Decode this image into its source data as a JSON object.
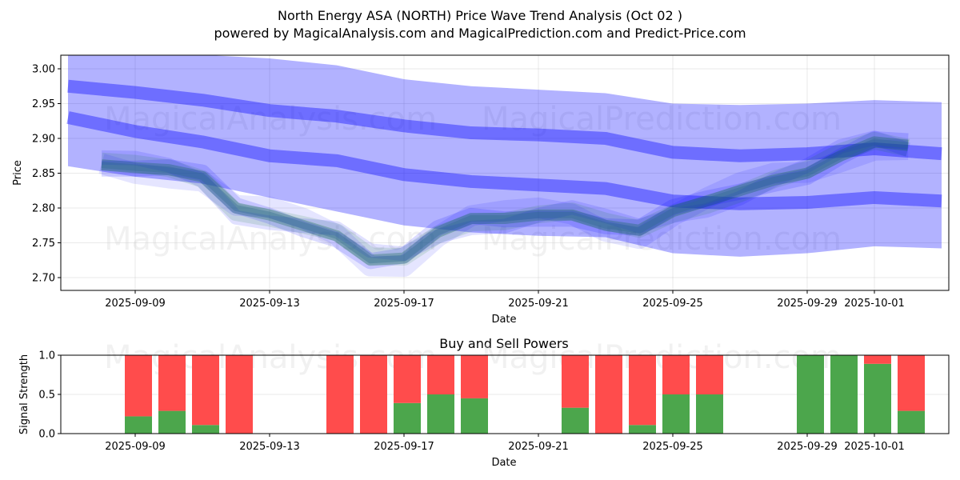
{
  "title": "North Energy ASA (NORTH) Price Wave Trend Analysis (Oct 02 )",
  "subtitle": "powered by MagicalAnalysis.com and MagicalPrediction.com and Predict-Price.com",
  "watermarks": [
    "MagicalAnalysis.com",
    "MagicalPrediction.com"
  ],
  "chart_data": [
    {
      "type": "area",
      "name": "price-wave-trend",
      "xlabel": "Date",
      "ylabel": "Price",
      "ylim": [
        2.68,
        3.02
      ],
      "xlim": [
        "2025-09-06",
        "2025-10-03"
      ],
      "grid": true,
      "yticks": [
        "2.70",
        "2.75",
        "2.80",
        "2.85",
        "2.90",
        "2.95",
        "3.00"
      ],
      "ytick_values": [
        2.7,
        2.75,
        2.8,
        2.85,
        2.9,
        2.95,
        3.0
      ],
      "xticks": [
        "2025-09-09",
        "2025-09-13",
        "2025-09-17",
        "2025-09-21",
        "2025-09-25",
        "2025-09-29",
        "2025-10-01"
      ],
      "colors": {
        "bands": "#0000ff",
        "price": "#008000"
      },
      "x": [
        "2025-09-07",
        "2025-09-09",
        "2025-09-11",
        "2025-09-13",
        "2025-09-15",
        "2025-09-17",
        "2025-09-19",
        "2025-09-21",
        "2025-09-23",
        "2025-09-25",
        "2025-09-27",
        "2025-09-29",
        "2025-10-01",
        "2025-10-03"
      ],
      "series": [
        {
          "name": "outer-band-upper",
          "values": [
            3.03,
            3.03,
            3.02,
            3.015,
            3.005,
            2.985,
            2.975,
            2.97,
            2.965,
            2.95,
            2.948,
            2.95,
            2.955,
            2.952
          ]
        },
        {
          "name": "outer-band-lower",
          "values": [
            2.86,
            2.845,
            2.835,
            2.815,
            2.795,
            2.775,
            2.765,
            2.76,
            2.758,
            2.735,
            2.73,
            2.735,
            2.745,
            2.742
          ]
        },
        {
          "name": "upper-trend-line",
          "values": [
            2.975,
            2.966,
            2.955,
            2.94,
            2.932,
            2.918,
            2.908,
            2.905,
            2.9,
            2.88,
            2.875,
            2.878,
            2.885,
            2.878
          ]
        },
        {
          "name": "middle-trend-line",
          "values": [
            2.93,
            2.91,
            2.895,
            2.875,
            2.868,
            2.848,
            2.838,
            2.833,
            2.828,
            2.81,
            2.806,
            2.808,
            2.815,
            2.81
          ]
        }
      ],
      "price": {
        "x": [
          "2025-09-08",
          "2025-09-09",
          "2025-09-10",
          "2025-09-11",
          "2025-09-12",
          "2025-09-13",
          "2025-09-14",
          "2025-09-15",
          "2025-09-16",
          "2025-09-17",
          "2025-09-18",
          "2025-09-19",
          "2025-09-20",
          "2025-09-21",
          "2025-09-22",
          "2025-09-23",
          "2025-09-24",
          "2025-09-25",
          "2025-09-26",
          "2025-09-27",
          "2025-09-28",
          "2025-09-29",
          "2025-09-30",
          "2025-10-01",
          "2025-10-02"
        ],
        "values": [
          2.862,
          2.858,
          2.855,
          2.845,
          2.8,
          2.79,
          2.775,
          2.76,
          2.725,
          2.728,
          2.765,
          2.785,
          2.785,
          2.79,
          2.79,
          2.775,
          2.768,
          2.795,
          2.81,
          2.825,
          2.84,
          2.85,
          2.875,
          2.895,
          2.89
        ]
      }
    },
    {
      "type": "bar",
      "name": "buy-and-sell-powers",
      "title": "Buy and Sell Powers",
      "xlabel": "Date",
      "ylabel": "Signal Strength",
      "ylim": [
        0,
        1
      ],
      "yticks": [
        "0.0",
        "0.5",
        "1.0"
      ],
      "ytick_values": [
        0,
        0.5,
        1.0
      ],
      "xticks": [
        "2025-09-09",
        "2025-09-13",
        "2025-09-17",
        "2025-09-21",
        "2025-09-25",
        "2025-09-29",
        "2025-10-01"
      ],
      "colors": {
        "buy": "#4ca64c",
        "sell": "#ff4c4c"
      },
      "categories": [
        "2025-09-09",
        "2025-09-10",
        "2025-09-11",
        "2025-09-12",
        "2025-09-15",
        "2025-09-16",
        "2025-09-17",
        "2025-09-18",
        "2025-09-19",
        "2025-09-22",
        "2025-09-23",
        "2025-09-24",
        "2025-09-25",
        "2025-09-26",
        "2025-09-29",
        "2025-09-30",
        "2025-10-01",
        "2025-10-02"
      ],
      "series": [
        {
          "name": "Buy",
          "values": [
            0.22,
            0.29,
            0.11,
            0.0,
            0.0,
            0.0,
            0.39,
            0.5,
            0.45,
            0.33,
            0.0,
            0.11,
            0.5,
            0.5,
            1.0,
            1.0,
            0.89,
            0.29
          ]
        },
        {
          "name": "Sell",
          "values": [
            0.78,
            0.71,
            0.89,
            1.0,
            1.0,
            1.0,
            0.61,
            0.5,
            0.55,
            0.67,
            1.0,
            0.89,
            0.5,
            0.5,
            0.0,
            0.0,
            0.11,
            0.71
          ]
        }
      ]
    }
  ]
}
